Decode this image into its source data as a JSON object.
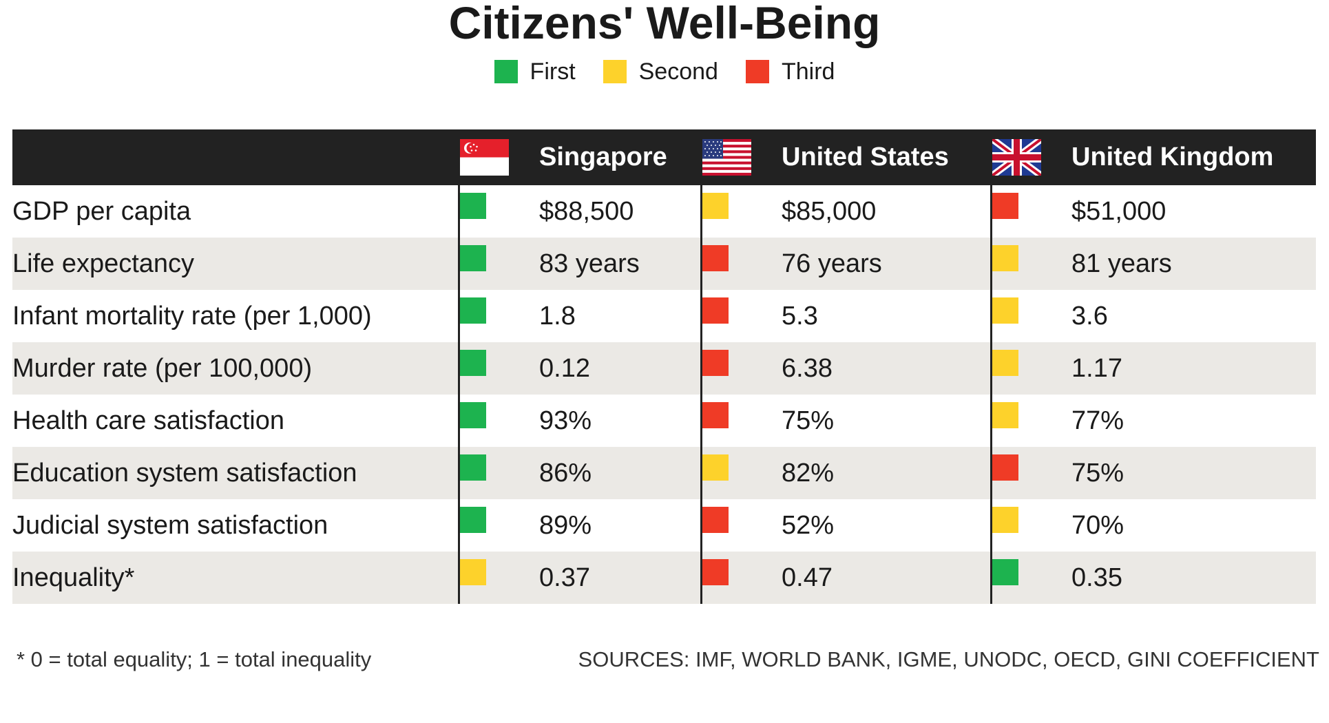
{
  "title": "Citizens' Well-Being",
  "legend": [
    {
      "label": "First",
      "color": "#1db34f"
    },
    {
      "label": "Second",
      "color": "#fdd22b"
    },
    {
      "label": "Third",
      "color": "#ef3b26"
    }
  ],
  "rank_colors": {
    "1": "#1db34f",
    "2": "#fdd22b",
    "3": "#ef3b26"
  },
  "countries": [
    {
      "name": "Singapore",
      "flag_icon": "singapore-flag-icon"
    },
    {
      "name": "United States",
      "flag_icon": "usa-flag-icon"
    },
    {
      "name": "United Kingdom",
      "flag_icon": "uk-flag-icon"
    }
  ],
  "chart_data": {
    "type": "table",
    "title": "Citizens' Well-Being",
    "columns": [
      "Singapore",
      "United States",
      "United Kingdom"
    ],
    "rows": [
      {
        "label": "GDP per capita",
        "values": [
          "$88,500",
          "$85,000",
          "$51,000"
        ],
        "ranks": [
          1,
          2,
          3
        ]
      },
      {
        "label": "Life expectancy",
        "values": [
          "83 years",
          "76 years",
          "81 years"
        ],
        "ranks": [
          1,
          3,
          2
        ]
      },
      {
        "label": "Infant mortality rate (per 1,000)",
        "values": [
          "1.8",
          "5.3",
          "3.6"
        ],
        "ranks": [
          1,
          3,
          2
        ]
      },
      {
        "label": "Murder rate (per 100,000)",
        "values": [
          "0.12",
          "6.38",
          "1.17"
        ],
        "ranks": [
          1,
          3,
          2
        ]
      },
      {
        "label": "Health care satisfaction",
        "values": [
          "93%",
          "75%",
          "77%"
        ],
        "ranks": [
          1,
          3,
          2
        ]
      },
      {
        "label": "Education system satisfaction",
        "values": [
          "86%",
          "82%",
          "75%"
        ],
        "ranks": [
          1,
          2,
          3
        ]
      },
      {
        "label": "Judicial system satisfaction",
        "values": [
          "89%",
          "52%",
          "70%"
        ],
        "ranks": [
          1,
          3,
          2
        ]
      },
      {
        "label": "Inequality*",
        "values": [
          "0.37",
          "0.47",
          "0.35"
        ],
        "ranks": [
          2,
          3,
          1
        ]
      }
    ]
  },
  "footnote": "* 0 = total equality; 1 = total inequality",
  "sources": "SOURCES: IMF, WORLD BANK, IGME, UNODC, OECD, GINI COEFFICIENT"
}
